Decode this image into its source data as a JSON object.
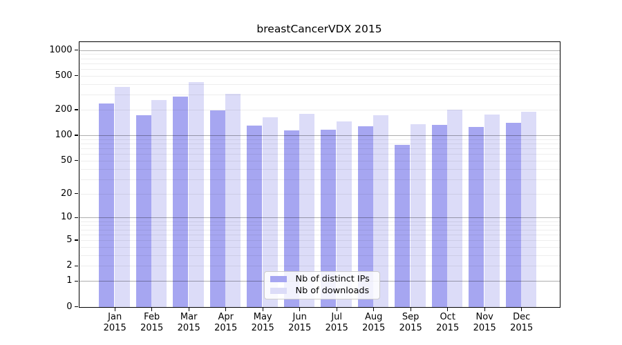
{
  "title": "breastCancerVDX 2015",
  "chart_data": {
    "type": "bar",
    "title": "breastCancerVDX 2015",
    "categories": [
      "Jan",
      "Feb",
      "Mar",
      "Apr",
      "May",
      "Jun",
      "Jul",
      "Aug",
      "Sep",
      "Oct",
      "Nov",
      "Dec"
    ],
    "x_tick_year": "2015",
    "series": [
      {
        "name": "Nb of distinct IPs",
        "color": "#a6a6f1",
        "values": [
          237,
          172,
          285,
          197,
          129,
          115,
          116,
          127,
          77,
          132,
          125,
          139
        ]
      },
      {
        "name": "Nb of downloads",
        "color": "#dcdcf8",
        "values": [
          368,
          258,
          420,
          308,
          162,
          178,
          145,
          172,
          136,
          200,
          176,
          188
        ]
      }
    ],
    "y_scale": "log1p",
    "y_axis_ticks": [
      "1000",
      "500",
      "200",
      "100",
      "50",
      "20",
      "10",
      "5",
      "2",
      "1",
      "0"
    ],
    "y_tick_values": [
      1000,
      500,
      200,
      100,
      50,
      20,
      10,
      5,
      2,
      1,
      0
    ],
    "ylim": [
      0,
      1001
    ],
    "grid": true,
    "legend_position": "lower center",
    "colors": {
      "spine": "#000000",
      "decade_gridline": "#aaaaaa",
      "minor_gridline": "#ededed",
      "legend_border": "#cccccc",
      "text": "#000000"
    }
  }
}
